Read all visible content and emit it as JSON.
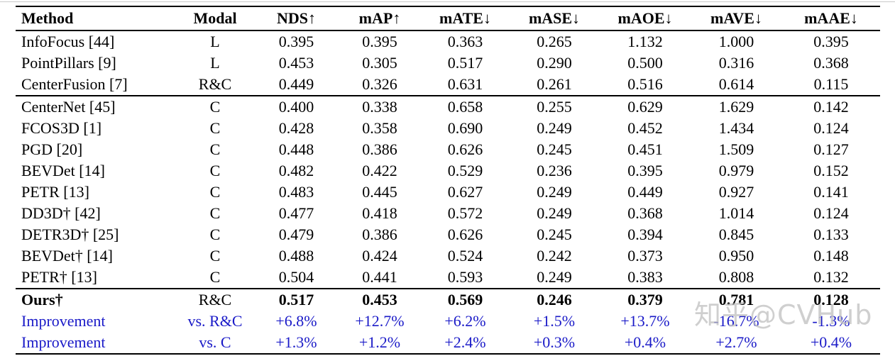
{
  "colors": {
    "text": "#000000",
    "rule": "#000000",
    "improvement_blue": "#1a1ac8",
    "watermark_gray": "#bfbfbf",
    "background": "#ffffff"
  },
  "watermark": {
    "zhihu": "知乎",
    "handle": "@CVHub"
  },
  "table": {
    "columns": [
      "Method",
      "Modal",
      "NDS↑",
      "mAP↑",
      "mATE↓",
      "mASE↓",
      "mAOE↓",
      "mAVE↓",
      "mAAE↓"
    ],
    "rows": [
      {
        "style": "default",
        "sep": false,
        "cells": [
          "InfoFocus [44]",
          "L",
          "0.395",
          "0.395",
          "0.363",
          "0.265",
          "1.132",
          "1.000",
          "0.395"
        ]
      },
      {
        "style": "default",
        "sep": false,
        "cells": [
          "PointPillars [9]",
          "L",
          "0.453",
          "0.305",
          "0.517",
          "0.290",
          "0.500",
          "0.316",
          "0.368"
        ]
      },
      {
        "style": "default",
        "sep": false,
        "cells": [
          "CenterFusion [7]",
          "R&C",
          "0.449",
          "0.326",
          "0.631",
          "0.261",
          "0.516",
          "0.614",
          "0.115"
        ]
      },
      {
        "style": "default",
        "sep": true,
        "cells": [
          "CenterNet [45]",
          "C",
          "0.400",
          "0.338",
          "0.658",
          "0.255",
          "0.629",
          "1.629",
          "0.142"
        ]
      },
      {
        "style": "default",
        "sep": false,
        "cells": [
          "FCOS3D [1]",
          "C",
          "0.428",
          "0.358",
          "0.690",
          "0.249",
          "0.452",
          "1.434",
          "0.124"
        ]
      },
      {
        "style": "default",
        "sep": false,
        "cells": [
          "PGD [20]",
          "C",
          "0.448",
          "0.386",
          "0.626",
          "0.245",
          "0.451",
          "1.509",
          "0.127"
        ]
      },
      {
        "style": "default",
        "sep": false,
        "cells": [
          "BEVDet [14]",
          "C",
          "0.482",
          "0.422",
          "0.529",
          "0.236",
          "0.395",
          "0.979",
          "0.152"
        ]
      },
      {
        "style": "default",
        "sep": false,
        "cells": [
          "PETR [13]",
          "C",
          "0.483",
          "0.445",
          "0.627",
          "0.249",
          "0.449",
          "0.927",
          "0.141"
        ]
      },
      {
        "style": "default",
        "sep": false,
        "cells": [
          "DD3D† [42]",
          "C",
          "0.477",
          "0.418",
          "0.572",
          "0.249",
          "0.368",
          "1.014",
          "0.124"
        ]
      },
      {
        "style": "default",
        "sep": false,
        "cells": [
          "DETR3D† [25]",
          "C",
          "0.479",
          "0.386",
          "0.626",
          "0.245",
          "0.394",
          "0.845",
          "0.133"
        ]
      },
      {
        "style": "default",
        "sep": false,
        "cells": [
          "BEVDet† [14]",
          "C",
          "0.488",
          "0.424",
          "0.524",
          "0.242",
          "0.373",
          "0.950",
          "0.148"
        ]
      },
      {
        "style": "default",
        "sep": false,
        "cells": [
          "PETR† [13]",
          "C",
          "0.504",
          "0.441",
          "0.593",
          "0.249",
          "0.383",
          "0.808",
          "0.132"
        ]
      },
      {
        "style": "ours",
        "sep": true,
        "cells": [
          "Ours†",
          "R&C",
          "0.517",
          "0.453",
          "0.569",
          "0.246",
          "0.379",
          "0.781",
          "0.128"
        ]
      },
      {
        "style": "improvement",
        "sep": false,
        "cells": [
          "Improvement",
          "vs. R&C",
          "+6.8%",
          "+12.7%",
          "+6.2%",
          "+1.5%",
          "+13.7%",
          "-16.7%",
          "-1.3%"
        ]
      },
      {
        "style": "improvement",
        "sep": false,
        "cells": [
          "Improvement",
          "vs. C",
          "+1.3%",
          "+1.2%",
          "+2.4%",
          "+0.3%",
          "+0.4%",
          "+2.7%",
          "+0.4%"
        ]
      }
    ]
  }
}
